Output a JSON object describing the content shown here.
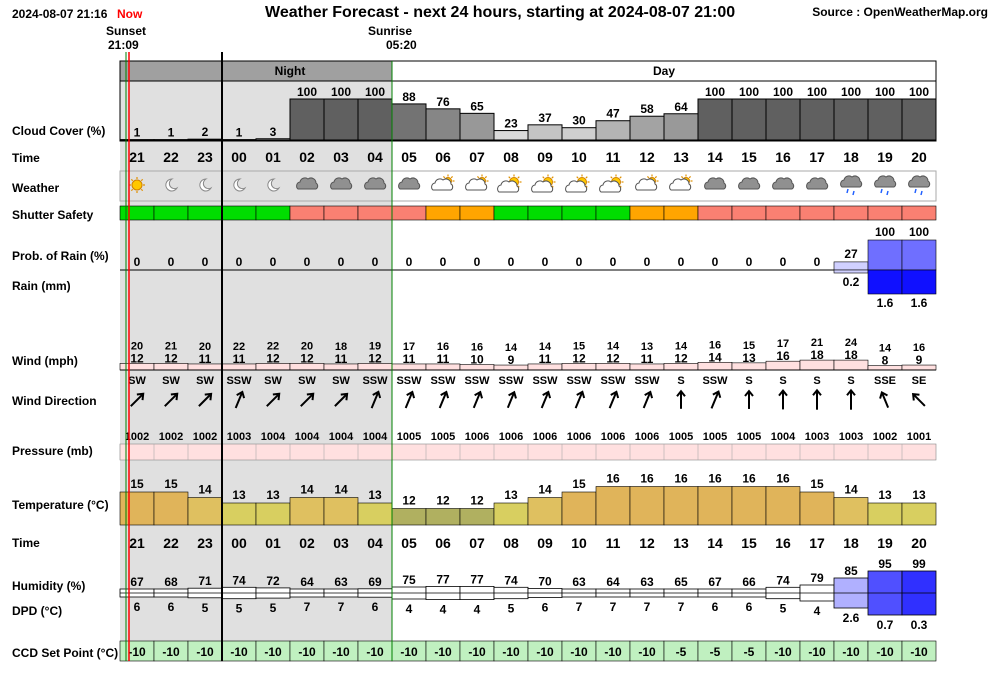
{
  "header": {
    "datetime": "2024-08-07 21:16",
    "now_label": "Now",
    "title": "Weather Forecast - next 24 hours, starting at 2024-08-07 21:00",
    "source": "Source : OpenWeatherMap.org"
  },
  "sun": {
    "sunset_label": "Sunset",
    "sunset_time": "21:09",
    "sunrise_label": "Sunrise",
    "sunrise_time": "05:20"
  },
  "period": {
    "night_label": "Night",
    "day_label": "Day"
  },
  "labels": {
    "cloud": "Cloud Cover (%)",
    "time": "Time",
    "weather": "Weather",
    "shutter": "Shutter Safety",
    "prob_rain": "Prob. of Rain (%)",
    "rain": "Rain (mm)",
    "wind": "Wind (mph)",
    "wind_dir": "Wind Direction",
    "pressure": "Pressure (mb)",
    "temperature": "Temperature (°C)",
    "time2": "Time",
    "humidity": "Humidity (%)",
    "dpd": "DPD (°C)",
    "ccd": "CCD Set Point (°C)"
  },
  "colors": {
    "night_shade": "#e0e0e0",
    "period_band": "#a0a0a0",
    "safe": "#00dd00",
    "caution": "#ffa500",
    "unsafe": "#fa8072",
    "wind_fill": "#ffe0e0",
    "pressure_fill": "#ffe0e0",
    "ccd_fill": "#c0f0c0",
    "now_line": "#ff0000",
    "sun_line": "#008000"
  },
  "chart_data": {
    "type": "table",
    "hours": [
      "21",
      "22",
      "23",
      "00",
      "01",
      "02",
      "03",
      "04",
      "05",
      "06",
      "07",
      "08",
      "09",
      "10",
      "11",
      "12",
      "13",
      "14",
      "15",
      "16",
      "17",
      "18",
      "19",
      "20"
    ],
    "cloud_cover": [
      1,
      1,
      2,
      1,
      3,
      100,
      100,
      100,
      88,
      76,
      65,
      23,
      37,
      30,
      47,
      58,
      64,
      100,
      100,
      100,
      100,
      100,
      100,
      100
    ],
    "weather_icons": [
      "clear-day",
      "clear-night",
      "clear-night",
      "clear-night",
      "clear-night",
      "overcast",
      "overcast",
      "overcast",
      "overcast",
      "partly-cloudy-day",
      "partly-cloudy-day",
      "few-clouds-day",
      "few-clouds-day",
      "few-clouds-day",
      "few-clouds-day",
      "partly-cloudy-day",
      "partly-cloudy-day",
      "overcast",
      "overcast",
      "overcast",
      "overcast",
      "light-rain",
      "light-rain",
      "light-rain"
    ],
    "shutter_safety": [
      "safe",
      "safe",
      "safe",
      "safe",
      "safe",
      "unsafe",
      "unsafe",
      "unsafe",
      "unsafe",
      "caution",
      "caution",
      "safe",
      "safe",
      "safe",
      "safe",
      "caution",
      "caution",
      "unsafe",
      "unsafe",
      "unsafe",
      "unsafe",
      "unsafe",
      "unsafe",
      "unsafe"
    ],
    "prob_of_rain": [
      0,
      0,
      0,
      0,
      0,
      0,
      0,
      0,
      0,
      0,
      0,
      0,
      0,
      0,
      0,
      0,
      0,
      0,
      0,
      0,
      0,
      27,
      100,
      100
    ],
    "rain_mm": [
      null,
      null,
      null,
      null,
      null,
      null,
      null,
      null,
      null,
      null,
      null,
      null,
      null,
      null,
      null,
      null,
      null,
      null,
      null,
      null,
      null,
      0.2,
      1.6,
      1.6
    ],
    "wind_gust_mph": [
      20,
      21,
      20,
      22,
      22,
      20,
      18,
      19,
      17,
      16,
      16,
      14,
      14,
      15,
      14,
      13,
      14,
      16,
      15,
      17,
      21,
      24,
      14,
      16
    ],
    "wind_speed_mph": [
      12,
      12,
      11,
      11,
      12,
      12,
      11,
      12,
      11,
      11,
      10,
      9,
      11,
      12,
      12,
      11,
      12,
      14,
      13,
      16,
      18,
      18,
      8,
      9
    ],
    "wind_direction": [
      "SW",
      "SW",
      "SW",
      "SSW",
      "SW",
      "SW",
      "SW",
      "SSW",
      "SSW",
      "SSW",
      "SSW",
      "SSW",
      "SSW",
      "SSW",
      "SSW",
      "SSW",
      "S",
      "SSW",
      "S",
      "S",
      "S",
      "S",
      "SSE",
      "SE"
    ],
    "pressure_mb": [
      1002,
      1002,
      1002,
      1003,
      1004,
      1004,
      1004,
      1004,
      1005,
      1005,
      1006,
      1006,
      1006,
      1006,
      1006,
      1006,
      1005,
      1005,
      1005,
      1004,
      1003,
      1003,
      1002,
      1001
    ],
    "temperature_c": [
      15,
      15,
      14,
      13,
      13,
      14,
      14,
      13,
      12,
      12,
      12,
      13,
      14,
      15,
      16,
      16,
      16,
      16,
      16,
      16,
      15,
      14,
      13,
      13
    ],
    "humidity_pct": [
      67,
      68,
      71,
      74,
      72,
      64,
      63,
      69,
      75,
      77,
      77,
      74,
      70,
      63,
      64,
      63,
      65,
      67,
      66,
      74,
      79,
      85,
      95,
      99
    ],
    "dpd_c": [
      "6",
      "6",
      "5",
      "5",
      "5",
      "7",
      "7",
      "6",
      "4",
      "4",
      "4",
      "5",
      "6",
      "7",
      "7",
      "7",
      "7",
      "6",
      "6",
      "5",
      "4",
      "2.6",
      "0.7",
      "0.3"
    ],
    "ccd_set_point_c": [
      -10,
      -10,
      -10,
      -10,
      -10,
      -10,
      -10,
      -10,
      -10,
      -10,
      -10,
      -10,
      -10,
      -10,
      -10,
      -10,
      -5,
      -5,
      -5,
      -10,
      -10,
      -10,
      -10,
      -10
    ]
  }
}
